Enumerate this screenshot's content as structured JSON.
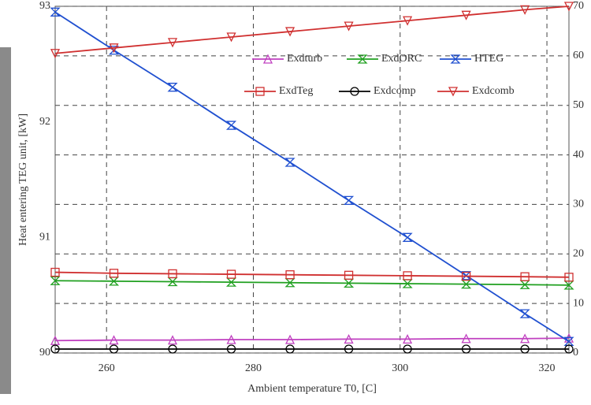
{
  "chart_data": {
    "type": "line",
    "x_label": "Ambient temperature T0, [C]",
    "y_label": "Heat entering TEG unit, [kW]",
    "x": [
      253,
      261,
      269,
      277,
      285,
      293,
      301,
      309,
      317,
      323
    ],
    "xlim": [
      253,
      323
    ],
    "xticks": [
      260,
      280,
      300,
      320
    ],
    "ylim": [
      90,
      93
    ],
    "yticks": [
      90,
      91,
      92,
      93
    ],
    "y2lim": [
      0,
      70
    ],
    "y2ticks": [
      0,
      10,
      20,
      30,
      40,
      50,
      60,
      70
    ],
    "grid": true,
    "series": [
      {
        "name": "Exdturb",
        "color": "#c040c0",
        "marker": "triangle",
        "axis": "y2",
        "values": [
          2.5,
          2.6,
          2.6,
          2.7,
          2.7,
          2.8,
          2.8,
          2.9,
          2.9,
          3.0
        ]
      },
      {
        "name": "ExdORC",
        "color": "#20a020",
        "marker": "cross",
        "axis": "y2",
        "values": [
          14.6,
          14.5,
          14.4,
          14.3,
          14.2,
          14.1,
          14.0,
          13.9,
          13.8,
          13.7
        ]
      },
      {
        "name": "HTEG",
        "color": "#2050d0",
        "marker": "cross",
        "values": [
          92.95,
          92.62,
          92.3,
          91.97,
          91.65,
          91.32,
          91.0,
          90.67,
          90.34,
          90.1
        ]
      },
      {
        "name": "ExdTeg",
        "color": "#d03030",
        "marker": "square",
        "axis": "y2",
        "values": [
          16.3,
          16.1,
          16.0,
          15.9,
          15.8,
          15.7,
          15.6,
          15.5,
          15.4,
          15.3
        ]
      },
      {
        "name": "Exdcomp",
        "color": "#000000",
        "marker": "circle",
        "axis": "y2",
        "values": [
          0.8,
          0.8,
          0.8,
          0.8,
          0.8,
          0.8,
          0.8,
          0.8,
          0.8,
          0.8
        ]
      },
      {
        "name": "Exdcomb",
        "color": "#d03030",
        "marker": "down-triangle",
        "axis": "y2",
        "values": [
          60.5,
          61.6,
          62.7,
          63.8,
          64.9,
          66.0,
          67.1,
          68.2,
          69.3,
          70.0
        ]
      }
    ]
  }
}
